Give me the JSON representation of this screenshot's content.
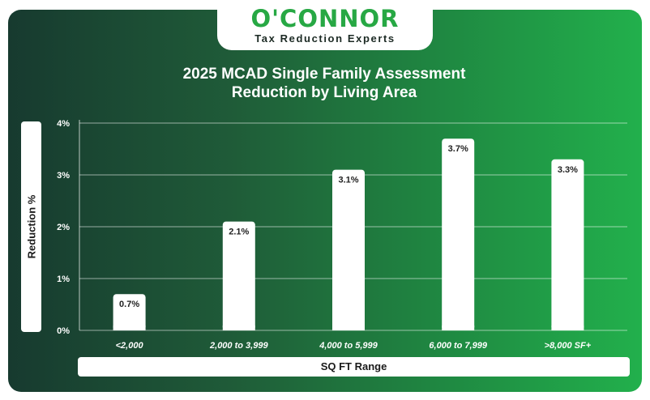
{
  "logo": {
    "brand": "O'CONNOR",
    "tagline": "Tax Reduction Experts"
  },
  "colors": {
    "accent": "#27a844",
    "background_left": "#173a2f",
    "background_right": "#22b04c",
    "bar": "#ffffff"
  },
  "chart_data": {
    "type": "bar",
    "title_line1": "2025 MCAD Single Family Assessment",
    "title_line2": "Reduction by Living Area",
    "xlabel": "SQ FT Range",
    "ylabel": "Reduction %",
    "categories": [
      "<2,000",
      "2,000 to 3,999",
      "4,000 to 5,999",
      "6,000 to 7,999",
      ">8,000 SF+"
    ],
    "values": [
      0.7,
      2.1,
      3.1,
      3.7,
      3.3
    ],
    "data_labels": [
      "0.7%",
      "2.1%",
      "3.1%",
      "3.7%",
      "3.3%"
    ],
    "yticks": [
      0,
      1,
      2,
      3,
      4
    ],
    "ytick_labels": [
      "0%",
      "1%",
      "2%",
      "3%",
      "4%"
    ],
    "ylim": [
      0,
      4
    ],
    "grid": true,
    "legend": "none"
  }
}
